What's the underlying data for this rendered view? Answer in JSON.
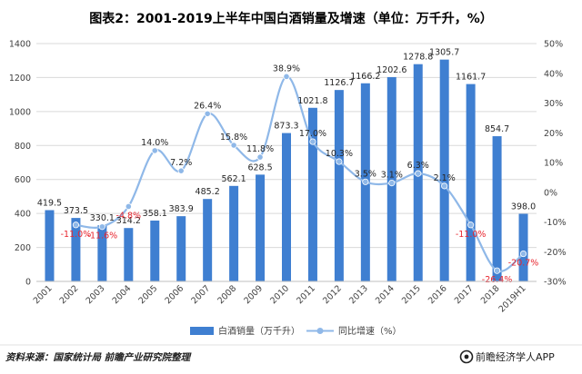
{
  "colors": {
    "bar": "#3f7fd1",
    "line": "#8fb8e8",
    "negative_label": "#e8262f",
    "label": "#262626",
    "grid": "#d9d9d9"
  },
  "source": "资料来源：国家统计局 前瞻产业研究院整理",
  "brand": {
    "icon": "qianzhan-logo-icon",
    "name": "前瞻经济学人APP"
  },
  "chart_data": {
    "type": "bar",
    "title": "图表2：2001-2019上半年中国白酒销量及增速（单位：万千升，%）",
    "categories": [
      "2001",
      "2002",
      "2003",
      "2004",
      "2005",
      "2006",
      "2007",
      "2008",
      "2009",
      "2010",
      "2011",
      "2012",
      "2013",
      "2014",
      "2015",
      "2016",
      "2017",
      "2018",
      "2019H1"
    ],
    "series": [
      {
        "name": "白酒销量（万千升）",
        "type": "bar",
        "axis": "left",
        "values": [
          419.5,
          373.5,
          330.1,
          314.2,
          358.1,
          383.9,
          485.2,
          562.1,
          628.5,
          873.3,
          1021.8,
          1126.7,
          1166.2,
          1202.6,
          1278.8,
          1305.7,
          1161.7,
          854.7,
          398.0
        ],
        "labels": [
          "419.5",
          "373.5",
          "330.1",
          "314.2",
          "358.1",
          "383.9",
          "485.2",
          "562.1",
          "628.5",
          "873.3",
          "1021.8",
          "1126.7",
          "1166.2",
          "1202.6",
          "1278.8",
          "1305.7",
          "1161.7",
          "854.7",
          "398.0"
        ]
      },
      {
        "name": "同比增速（%）",
        "type": "line",
        "axis": "right",
        "values": [
          null,
          -11.0,
          -11.6,
          -4.8,
          14.0,
          7.2,
          26.4,
          15.8,
          11.8,
          38.9,
          17.0,
          10.3,
          3.5,
          3.1,
          6.3,
          2.1,
          -11.0,
          -26.4,
          -20.7
        ],
        "labels": [
          "",
          "-11.0%",
          "-11.6%",
          "-4.8%",
          "14.0%",
          "7.2%",
          "26.4%",
          "15.8%",
          "11.8%",
          "38.9%",
          "17.0%",
          "10.3%",
          "3.5%",
          "3.1%",
          "6.3%",
          "2.1%",
          "-11.0%",
          "-26.4%",
          "-20.7%"
        ]
      }
    ],
    "y_left": {
      "min": 0,
      "max": 1400,
      "ticks": [
        0,
        200,
        400,
        600,
        800,
        1000,
        1200,
        1400
      ],
      "tick_labels": [
        "0",
        "200",
        "400",
        "600",
        "800",
        "1000",
        "1200",
        "1400"
      ]
    },
    "y_right": {
      "min": -30,
      "max": 50,
      "ticks": [
        -30,
        -20,
        -10,
        0,
        10,
        20,
        30,
        40,
        50
      ],
      "tick_labels": [
        "-30%",
        "-20%",
        "-10%",
        "0%",
        "10%",
        "20%",
        "30%",
        "40%",
        "50%"
      ]
    },
    "grid": true,
    "legend_position": "bottom-center"
  }
}
